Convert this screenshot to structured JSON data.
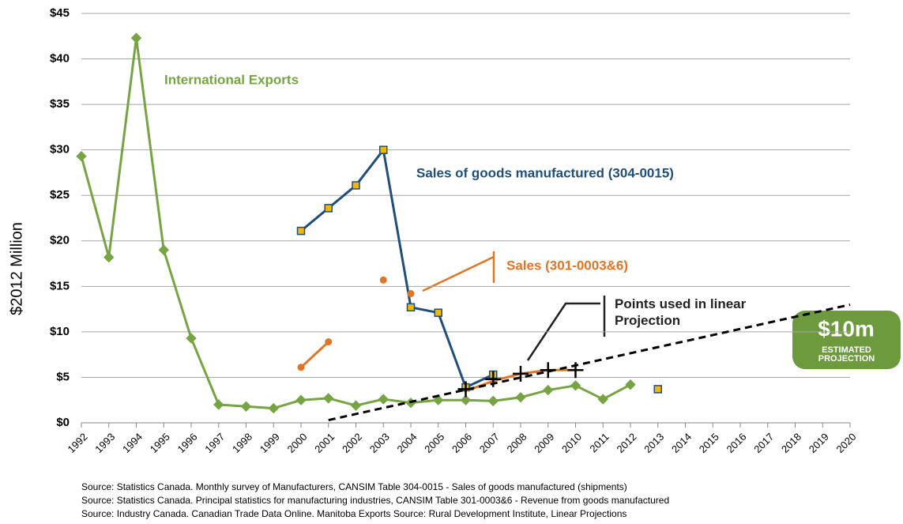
{
  "chart_data": {
    "type": "line",
    "y_label": "$2012 Million",
    "categories": [
      "1992",
      "1993",
      "1994",
      "1995",
      "1996",
      "1997",
      "1998",
      "1999",
      "2000",
      "2001",
      "2002",
      "2003",
      "2004",
      "2005",
      "2006",
      "2007",
      "2008",
      "2009",
      "2010",
      "2011",
      "2012",
      "2013",
      "2014",
      "2015",
      "2016",
      "2017",
      "2018",
      "2019",
      "2020"
    ],
    "ylim": [
      0,
      45
    ],
    "yticks": [
      {
        "value": 0,
        "label": "$0"
      },
      {
        "value": 5,
        "label": "$5"
      },
      {
        "value": 10,
        "label": "$10"
      },
      {
        "value": 15,
        "label": "$15"
      },
      {
        "value": 20,
        "label": "$20"
      },
      {
        "value": 25,
        "label": "$25"
      },
      {
        "value": 30,
        "label": "$30"
      },
      {
        "value": 35,
        "label": "$35"
      },
      {
        "value": 40,
        "label": "$40"
      },
      {
        "value": 45,
        "label": "$45"
      }
    ],
    "grid": true,
    "series": [
      {
        "name": "International Exports",
        "color": "#77a443",
        "marker": "diamond",
        "marker_fill": "#77a443",
        "values": [
          29.3,
          18.2,
          42.3,
          19.0,
          9.3,
          2.0,
          1.8,
          1.6,
          2.5,
          2.7,
          1.9,
          2.6,
          2.2,
          2.5,
          2.5,
          2.4,
          2.8,
          3.6,
          4.1,
          2.6,
          4.2,
          null,
          null,
          null,
          null,
          null,
          null,
          null,
          null
        ]
      },
      {
        "name": "Sales of goods manufactured (304-0015)",
        "color": "#1f4e79",
        "marker": "square",
        "marker_fill": "#f2b705",
        "values": [
          null,
          null,
          null,
          null,
          null,
          null,
          null,
          null,
          21.1,
          23.6,
          26.1,
          30.0,
          12.7,
          12.1,
          3.9,
          5.3,
          null,
          null,
          null,
          null,
          null,
          3.7,
          null,
          null,
          null,
          null,
          null,
          null,
          null
        ]
      },
      {
        "name": "Sales (301-0003&6)",
        "color": "#e07528",
        "marker": "circle",
        "marker_fill": "#e07528",
        "values": [
          null,
          null,
          null,
          null,
          null,
          null,
          null,
          null,
          6.1,
          8.9,
          null,
          15.7,
          null,
          null,
          null,
          null,
          null,
          null,
          null,
          null,
          null,
          null,
          null,
          null,
          null,
          null,
          null,
          null,
          null
        ]
      },
      {
        "color": "#e07528",
        "marker": "circle",
        "marker_fill": "#e07528",
        "values": [
          null,
          null,
          null,
          null,
          null,
          null,
          null,
          null,
          null,
          null,
          null,
          null,
          14.2,
          null,
          null,
          null,
          null,
          null,
          null,
          null,
          null,
          null,
          null,
          null,
          null,
          null,
          null,
          null,
          null
        ]
      },
      {
        "color": "#e07528",
        "marker": "none",
        "values": [
          null,
          null,
          null,
          null,
          null,
          null,
          null,
          null,
          null,
          null,
          null,
          null,
          null,
          null,
          3.5,
          4.6,
          5.4,
          5.8,
          5.8,
          null,
          null,
          null,
          null,
          null,
          null,
          null,
          null,
          null,
          null
        ]
      },
      {
        "name": "Points used in linear Projection",
        "color": "#000000",
        "marker": "plus",
        "line": false,
        "values": [
          null,
          null,
          null,
          null,
          null,
          null,
          null,
          null,
          null,
          null,
          null,
          null,
          null,
          null,
          3.7,
          4.8,
          5.4,
          5.8,
          5.8,
          null,
          null,
          null,
          null,
          null,
          null,
          null,
          null,
          null,
          null
        ]
      },
      {
        "color": "#000000",
        "marker": "none",
        "dash": true,
        "values": [
          null,
          null,
          null,
          null,
          null,
          null,
          null,
          null,
          null,
          0.3,
          0.97,
          1.64,
          2.3,
          2.97,
          3.64,
          4.31,
          4.98,
          5.64,
          6.31,
          6.98,
          7.65,
          8.32,
          8.98,
          9.65,
          10.32,
          10.99,
          11.66,
          12.32,
          12.99
        ]
      }
    ],
    "badge": {
      "value": "$10m",
      "label": "ESTIMATED PROJECTION"
    },
    "sources": [
      "Source: Statistics Canada. Monthly survey of Manufacturers, CANSIM Table 304-0015 - Sales of goods manufactured (shipments)",
      "Source: Statistics Canada. Principal statistics for manufacturing industries, CANSIM Table 301-0003&6 - Revenue from goods manufactured",
      "Source: Industry Canada. Canadian Trade Data Online. Manitoba Exports Source: Rural Development Institute, Linear Projections"
    ]
  }
}
